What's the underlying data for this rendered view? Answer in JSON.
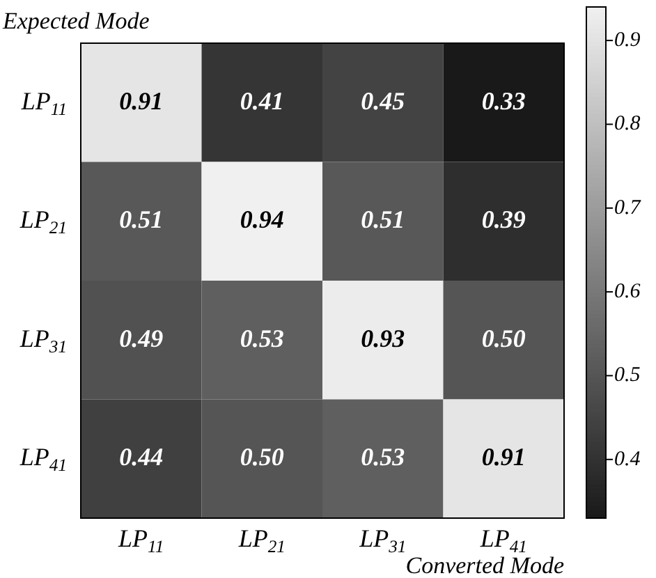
{
  "chart_data": {
    "type": "heatmap",
    "xlabel": "Converted Mode",
    "ylabel": "Expected Mode",
    "categories": [
      "LP$_{11}$",
      "LP$_{21}$",
      "LP$_{31}$",
      "LP$_{41}$"
    ],
    "y_categories": [
      "LP$_{11}$",
      "LP$_{21}$",
      "LP$_{31}$",
      "LP$_{41}$"
    ],
    "cells": [
      [
        0.91,
        0.41,
        0.45,
        0.33
      ],
      [
        0.51,
        0.94,
        0.51,
        0.39
      ],
      [
        0.49,
        0.53,
        0.93,
        0.5
      ],
      [
        0.44,
        0.5,
        0.53,
        0.91
      ]
    ],
    "cell_labels": [
      [
        "0.91",
        "0.41",
        "0.45",
        "0.33"
      ],
      [
        "0.51",
        "0.94",
        "0.51",
        "0.39"
      ],
      [
        "0.49",
        "0.53",
        "0.93",
        "0.50"
      ],
      [
        "0.44",
        "0.50",
        "0.53",
        "0.91"
      ]
    ],
    "clim": [
      0.33,
      0.94
    ],
    "cticks": [
      0.4,
      0.5,
      0.6,
      0.7,
      0.8,
      0.9
    ],
    "data_labels": true
  }
}
